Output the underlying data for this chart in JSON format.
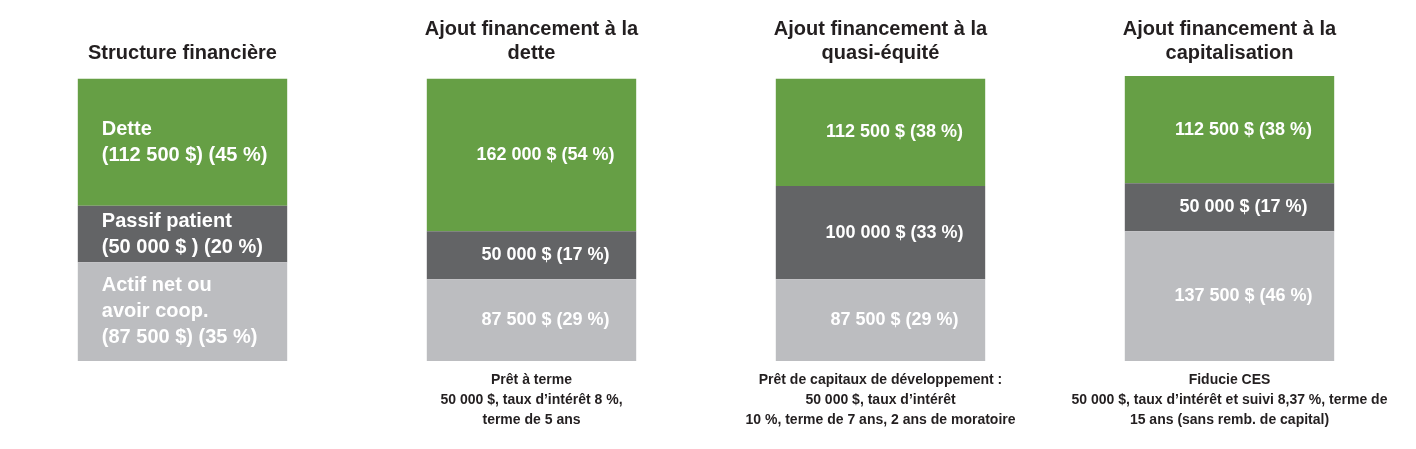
{
  "chart_data": {
    "type": "bar",
    "stacked": true,
    "tick_labels": "x",
    "categories": [
      "Structure financière",
      "Ajout financement à la dette",
      "Ajout financement à la quasi-équité",
      "Ajout financement à la capitalisation"
    ],
    "series": [
      {
        "color": "#bcbdc0",
        "values": [
          35,
          29,
          29,
          46
        ],
        "value_labels": [
          "Actif net ou\navoir coop.\n(87 500 $) (35 %)",
          "87 500 $ (29 %)",
          "87 500 $ (29 %)",
          "137 500 $ (46 %)"
        ]
      },
      {
        "color": "#636466",
        "values": [
          20,
          17,
          33,
          17
        ],
        "value_labels": [
          "Passif patient\n(50 000 $ ) (20 %)",
          "50 000 $ (17 %)",
          "100 000 $ (33 %)",
          "50 000 $ (17 %)"
        ]
      },
      {
        "color": "#669f45",
        "values": [
          45,
          54,
          38,
          38
        ],
        "value_labels": [
          "Dette\n(112 500 $) (45 %)",
          "162 000 $ (54 %)",
          "112 500 $ (38 %)",
          "112 500 $ (38 %)"
        ]
      }
    ],
    "annotations": [
      "Prêt à terme\n50 000 $, taux d’intérêt 8 %,\nterme de 5 ans",
      "Prêt de capitaux de développement :\n50 000 $, taux d’intérêt\n10 %, terme de 7 ans, 2 ans de moratoire",
      "Fiducie CES\n50 000 $, taux d’intérêt et suivi 8,37 %, terme de\n15 ans (sans remb. de capital)"
    ]
  }
}
